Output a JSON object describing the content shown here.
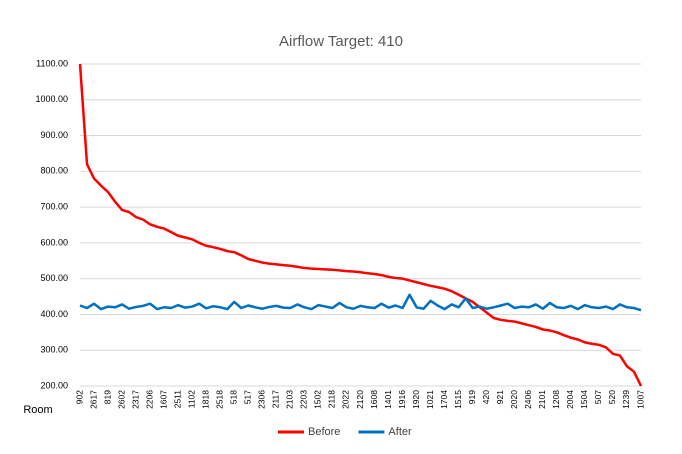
{
  "chart_data": {
    "type": "line",
    "title": "Airflow Target: 410",
    "x_label": "Room",
    "categories": [
      "902",
      null,
      "2617",
      null,
      "819",
      null,
      "2602",
      null,
      "2317",
      null,
      "2206",
      null,
      "1607",
      null,
      "2511",
      null,
      "1102",
      null,
      "1818",
      null,
      "2518",
      null,
      "518",
      null,
      "517",
      null,
      "2306",
      null,
      "2117",
      null,
      "2103",
      null,
      "2203",
      null,
      "1502",
      null,
      "2118",
      null,
      "2022",
      null,
      "2120",
      null,
      "1608",
      null,
      "1401",
      null,
      "1916",
      null,
      "1920",
      null,
      "1021",
      null,
      "1704",
      null,
      "1515",
      null,
      "919",
      null,
      "420",
      null,
      "921",
      null,
      "2020",
      null,
      "2406",
      null,
      "2101",
      null,
      "1208",
      null,
      "2004",
      null,
      "1504",
      null,
      "507",
      null,
      "520",
      null,
      "1239",
      null,
      "1007"
    ],
    "series": [
      {
        "name": "Before",
        "color": "#ff0000",
        "values": [
          1100,
          820,
          780,
          760,
          742,
          715,
          692,
          686,
          672,
          665,
          652,
          645,
          640,
          630,
          620,
          615,
          610,
          600,
          592,
          588,
          583,
          577,
          574,
          565,
          555,
          550,
          545,
          542,
          540,
          538,
          536,
          533,
          530,
          528,
          527,
          526,
          525,
          523,
          521,
          520,
          518,
          515,
          513,
          510,
          505,
          502,
          500,
          495,
          490,
          485,
          480,
          476,
          472,
          465,
          455,
          445,
          435,
          420,
          405,
          390,
          385,
          382,
          380,
          375,
          370,
          365,
          358,
          355,
          350,
          342,
          335,
          330,
          322,
          318,
          315,
          308,
          290,
          285,
          255,
          240,
          200
        ]
      },
      {
        "name": "After",
        "color": "#0070c0",
        "values": [
          425,
          418,
          430,
          415,
          422,
          420,
          428,
          416,
          421,
          424,
          430,
          415,
          420,
          418,
          426,
          419,
          422,
          430,
          417,
          423,
          420,
          415,
          435,
          418,
          425,
          420,
          416,
          421,
          424,
          419,
          418,
          428,
          420,
          415,
          426,
          422,
          418,
          432,
          420,
          416,
          424,
          420,
          418,
          430,
          419,
          425,
          418,
          455,
          420,
          416,
          438,
          425,
          415,
          428,
          420,
          445,
          418,
          422,
          416,
          420,
          425,
          430,
          418,
          422,
          420,
          428,
          416,
          432,
          420,
          418,
          424,
          415,
          426,
          420,
          418,
          422,
          415,
          428,
          420,
          418,
          412
        ]
      }
    ],
    "ylim": [
      200,
      1100
    ],
    "yticks": [
      {
        "value": 200,
        "label": "200.00"
      },
      {
        "value": 300,
        "label": "300.00"
      },
      {
        "value": 400,
        "label": "400.00"
      },
      {
        "value": 500,
        "label": "500.00"
      },
      {
        "value": 600,
        "label": "600.00"
      },
      {
        "value": 700,
        "label": "700.00"
      },
      {
        "value": 800,
        "label": "800.00"
      },
      {
        "value": 900,
        "label": "900.00"
      },
      {
        "value": 1000,
        "label": "1000.00"
      },
      {
        "value": 1100,
        "label": "1100.00"
      }
    ],
    "grid": true,
    "legend": "bottom"
  }
}
